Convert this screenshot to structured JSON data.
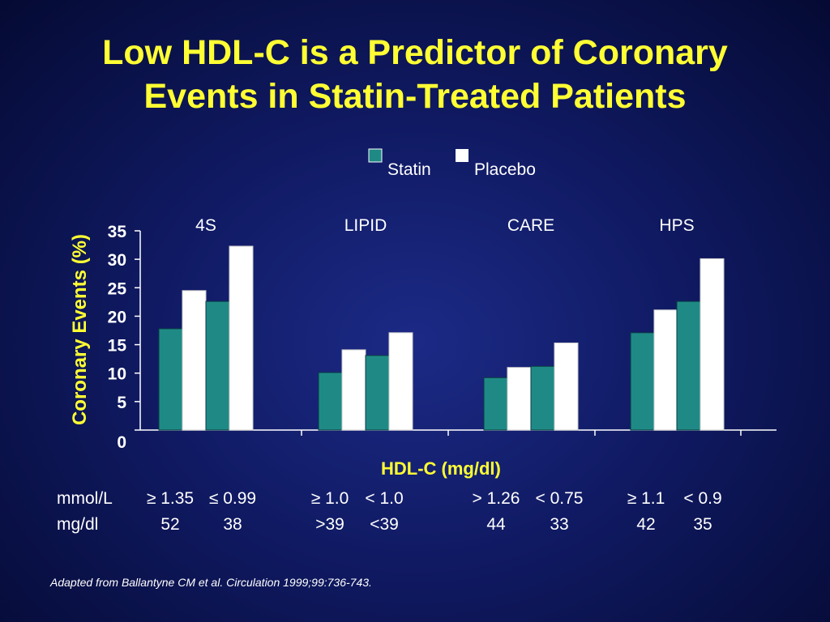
{
  "slide": {
    "title_line1": "Low HDL-C is a Predictor of Coronary",
    "title_line2": "Events in Statin-Treated Patients",
    "footnote": "Adapted from Ballantyne CM et al. Circulation 1999;99:736-743."
  },
  "colors": {
    "statin": "#1f8a85",
    "placebo": "#ffffff",
    "title": "#ffff33",
    "background": "#101a63"
  },
  "chart_data": {
    "type": "bar",
    "title": "",
    "ylabel": "Coronary Events (%)",
    "xlabel": "HDL-C (mg/dl)",
    "ylim": [
      0,
      35
    ],
    "yticks": [
      0,
      5,
      10,
      15,
      20,
      25,
      30,
      35
    ],
    "legend_position": "top-right",
    "legend": [
      "Statin",
      "Placebo"
    ],
    "studies": [
      {
        "name": "4S",
        "groups": [
          {
            "mmol": "≥ 1.35",
            "mgdl": "52",
            "statin": 17.8,
            "placebo": 24.5
          },
          {
            "mmol": "≤ 0.99",
            "mgdl": "38",
            "statin": 22.6,
            "placebo": 32.3
          }
        ]
      },
      {
        "name": "LIPID",
        "groups": [
          {
            "mmol": "≥ 1.0",
            "mgdl": ">39",
            "statin": 10.1,
            "placebo": 14.1
          },
          {
            "mmol": "< 1.0",
            "mgdl": "<39",
            "statin": 13.1,
            "placebo": 17.1
          }
        ]
      },
      {
        "name": "CARE",
        "groups": [
          {
            "mmol": "> 1.26",
            "mgdl": "44",
            "statin": 9.2,
            "placebo": 11.0
          },
          {
            "mmol": "< 0.75",
            "mgdl": "33",
            "statin": 11.2,
            "placebo": 15.3
          }
        ]
      },
      {
        "name": "HPS",
        "groups": [
          {
            "mmol": "≥ 1.1",
            "mgdl": "42",
            "statin": 17.1,
            "placebo": 21.1
          },
          {
            "mmol": "< 0.9",
            "mgdl": "35",
            "statin": 22.6,
            "placebo": 30.1
          }
        ]
      }
    ],
    "row_labels": {
      "mmol": "mmol/L",
      "mgdl": "mg/dl"
    }
  }
}
